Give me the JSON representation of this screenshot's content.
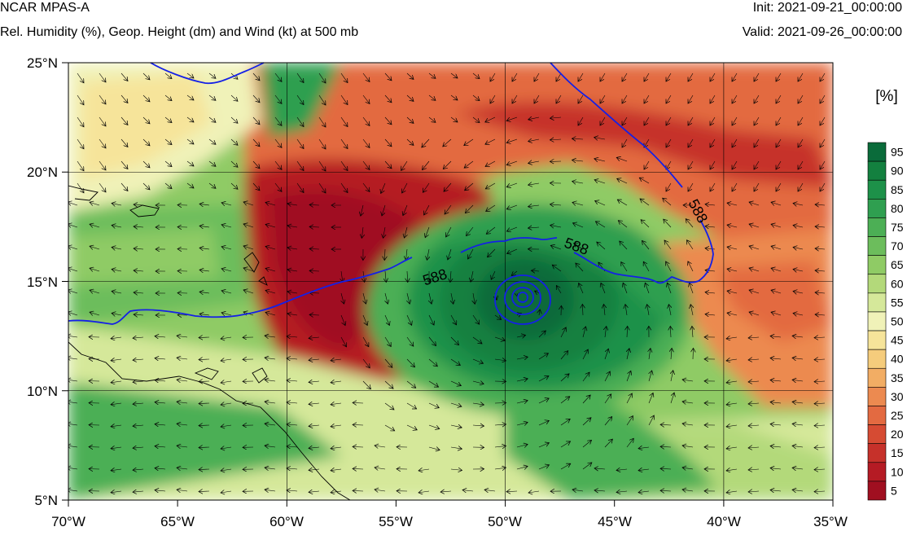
{
  "header": {
    "model": "NCAR MPAS-A",
    "subtitle": "Rel. Humidity (%), Geop. Height (dm) and Wind (kt) at 500 mb",
    "init": "Init: 2021-09-21_00:00:00",
    "valid": "Valid: 2021-09-26_00:00:00"
  },
  "map": {
    "lon_range": [
      -70,
      -35
    ],
    "lat_range": [
      5,
      25
    ],
    "lat_labels": [
      "25°N",
      "20°N",
      "15°N",
      "10°N",
      "5°N"
    ],
    "lon_labels": [
      "70°W",
      "65°W",
      "60°W",
      "55°W",
      "50°W",
      "45°W",
      "40°W",
      "35°W"
    ],
    "contour_label": "588",
    "storm_center": {
      "lon": -49.3,
      "lat": 14.2
    }
  },
  "colorbar": {
    "unit": "[%]",
    "levels": [
      "95",
      "90",
      "85",
      "80",
      "75",
      "70",
      "65",
      "60",
      "55",
      "50",
      "45",
      "40",
      "35",
      "30",
      "25",
      "20",
      "15",
      "10",
      "5"
    ],
    "colors": [
      "#0a6b3a",
      "#13803f",
      "#1d9149",
      "#2f9f50",
      "#4caf55",
      "#6cbd5c",
      "#8fcb65",
      "#b3d97a",
      "#d5e89a",
      "#f0f2b8",
      "#f6e49a",
      "#f5cc7c",
      "#f2ad64",
      "#ec8a50",
      "#e36a41",
      "#d64b33",
      "#c6312a",
      "#b51b24",
      "#a00f20"
    ]
  }
}
